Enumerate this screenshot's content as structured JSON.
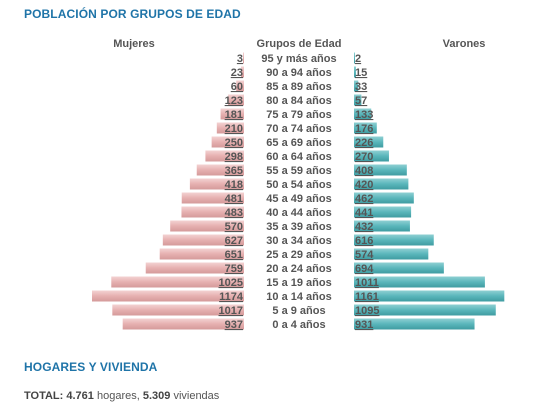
{
  "section_population": {
    "title": "POBLACIÓN POR GRUPOS DE EDAD"
  },
  "chart_data": {
    "type": "bar",
    "orientation": "horizontal-pyramid",
    "col_left_label": "Mujeres",
    "col_center_label": "Grupos de Edad",
    "col_right_label": "Varones",
    "categories": [
      "95 y más años",
      "90 a 94 años",
      "85 a 89 años",
      "80 a 84 años",
      "75 a 79 años",
      "70 a 74 años",
      "65 a 69 años",
      "60 a 64 años",
      "55 a 59 años",
      "50 a 54 años",
      "45 a 49 años",
      "40 a 44 años",
      "35 a 39 años",
      "30 a 34 años",
      "25 a 29 años",
      "20 a 24 años",
      "15 a 19 años",
      "10 a 14 años",
      "5 a 9 años",
      "0 a 4 años"
    ],
    "series": [
      {
        "name": "Mujeres",
        "color": "#e8b4b4",
        "values": [
          "3",
          "23",
          "60",
          "123",
          "181",
          "210",
          "250",
          "298",
          "365",
          "418",
          "481",
          "483",
          "570",
          "627",
          "651",
          "759",
          "1025",
          "1174",
          "1017",
          "937"
        ]
      },
      {
        "name": "Varones",
        "color": "#5fb8bd",
        "values": [
          "2",
          "15",
          "33",
          "57",
          "133",
          "176",
          "226",
          "270",
          "408",
          "420",
          "462",
          "441",
          "432",
          "616",
          "574",
          "694",
          "1011",
          "1161",
          "1095",
          "931"
        ]
      }
    ]
  },
  "section_housing": {
    "title": "HOGARES Y VIVIENDA"
  },
  "totals": {
    "label": "TOTAL:",
    "households_value": "4.761",
    "households_label": "hogares,",
    "dwellings_value": "5.309",
    "dwellings_label": "viviendas"
  }
}
